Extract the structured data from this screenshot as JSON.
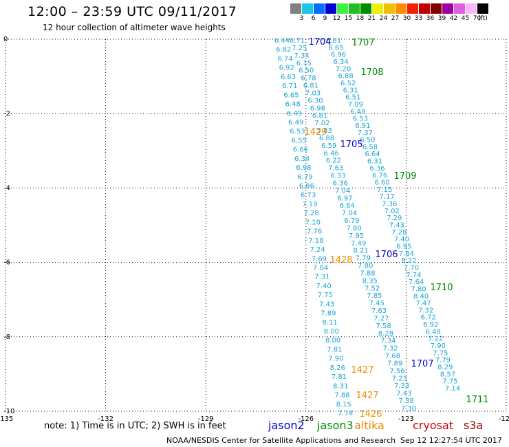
{
  "header": {
    "title": "12:00 – 23:59 UTC 09/11/2017",
    "subtitle": "12 hour collection of altimeter wave heights"
  },
  "scale": {
    "unit": "(ft)",
    "swatches": [
      {
        "label": "3",
        "color": "#808080"
      },
      {
        "label": "6",
        "color": "#19c8e6"
      },
      {
        "label": "9",
        "color": "#0070ff"
      },
      {
        "label": "12",
        "color": "#0000d2"
      },
      {
        "label": "15",
        "color": "#40f040"
      },
      {
        "label": "18",
        "color": "#20c020"
      },
      {
        "label": "21",
        "color": "#008c00"
      },
      {
        "label": "24",
        "color": "#f0f000"
      },
      {
        "label": "27",
        "color": "#f0c000"
      },
      {
        "label": "30",
        "color": "#ff8c00"
      },
      {
        "label": "33",
        "color": "#f02000"
      },
      {
        "label": "36",
        "color": "#c00000"
      },
      {
        "label": "39",
        "color": "#800000"
      },
      {
        "label": "42",
        "color": "#a000a0"
      },
      {
        "label": "45",
        "color": "#e060e0"
      },
      {
        "label": "70",
        "color": "#ffb4ff"
      },
      {
        "label": "",
        "color": "#000000"
      }
    ]
  },
  "axes": {
    "lon_labels": [
      "-135",
      "-132",
      "-129",
      "-126",
      "-123",
      "-120"
    ],
    "lon_values": [
      -135,
      -132,
      -129,
      -126,
      -123,
      -120
    ],
    "lat_labels": [
      "0",
      "-2",
      "-4",
      "-6",
      "-8",
      "-10"
    ],
    "lat_values": [
      0,
      -2,
      -4,
      -6,
      -8,
      -10
    ]
  },
  "colors": {
    "swh": "#19a5d7",
    "jason2": "#0000d2",
    "jason3": "#008c00",
    "altika": "#f08c00",
    "cryosat": "#d20000",
    "s3a": "#a00000",
    "grid": "#000000"
  },
  "tracks": [
    {
      "id": "A",
      "values": [
        "6.44",
        "6.82",
        "6.74",
        "6.92",
        "6.63",
        "6.71",
        "6.65",
        "6.48",
        "6.49",
        "6.49",
        "6.53",
        "6.55",
        "6.66",
        "6.34",
        "6.98",
        "6.79",
        "6.86",
        "6.73",
        "7.19",
        "7.28",
        "7.10",
        "7.76",
        "7.18",
        "7.24",
        "7.69",
        "7.04",
        "7.31",
        "7.40",
        "7.75",
        "7.43",
        "7.89",
        "8.11",
        "8.00",
        "8.00",
        "7.81",
        "7.90",
        "8.26",
        "7.81",
        "8.31",
        "7.88",
        "8.15",
        "7.74"
      ]
    },
    {
      "id": "B",
      "values": [
        "6.71",
        "7.25",
        "7.34",
        "6.15",
        "6.50",
        "6.78",
        "6.81",
        "7.03",
        "6.30",
        "6.98",
        "6.81",
        "7.02",
        "5.83",
        "6.88",
        "6.59",
        "6.46",
        "6.22",
        "7.63",
        "6.33",
        "6.36",
        "7.04",
        "6.97",
        "6.84",
        "7.04",
        "6.79",
        "7.80",
        "7.95",
        "7.49",
        "8.21",
        "7.79",
        "7.80",
        "7.88",
        "8.35",
        "7.52",
        "7.85",
        "7.45",
        "7.63",
        "7.27",
        "7.58",
        "8.28",
        "7.34",
        "7.32",
        "7.68",
        "7.89",
        "7.56",
        "7.23",
        "7.33",
        "7.43",
        "7.38",
        "7.30"
      ]
    },
    {
      "id": "C",
      "values": [
        "6.81",
        "6.65",
        "6.96",
        "6.34",
        "7.20",
        "6.88",
        "6.52",
        "6.31",
        "6.51",
        "7.09",
        "6.48",
        "6.53",
        "6.91",
        "7.37",
        "6.50",
        "6.58",
        "6.64",
        "6.31",
        "6.36",
        "6.76",
        "6.60",
        "7.15",
        "7.17",
        "7.36",
        "7.02",
        "7.29",
        "7.43",
        "7.28",
        "7.40",
        "6.95",
        "7.84",
        "8.22",
        "7.70",
        "7.74",
        "7.64",
        "7.80",
        "8.40",
        "7.47",
        "7.32",
        "6.72",
        "6.92",
        "6.48",
        "7.22",
        "7.90",
        "7.75",
        "7.79",
        "8.29",
        "8.57",
        "7.75",
        "7.14"
      ]
    }
  ],
  "pass_labels": [
    {
      "text": "1704",
      "sat": "jason2"
    },
    {
      "text": "1707",
      "sat": "jason3"
    },
    {
      "text": "1708",
      "sat": "jason3"
    },
    {
      "text": "1429",
      "sat": "altika"
    },
    {
      "text": "1705",
      "sat": "jason2"
    },
    {
      "text": "1709",
      "sat": "jason3"
    },
    {
      "text": "1428",
      "sat": "altika"
    },
    {
      "text": "1706",
      "sat": "jason2"
    },
    {
      "text": "1710",
      "sat": "jason3"
    },
    {
      "text": "1707",
      "sat": "jason2"
    },
    {
      "text": "1427",
      "sat": "altika"
    },
    {
      "text": "1427",
      "sat": "altika"
    },
    {
      "text": "1711",
      "sat": "jason3"
    },
    {
      "text": "1426",
      "sat": "altika"
    }
  ],
  "footer": {
    "note": "note:  1) Time is in UTC;  2) SWH is in feet",
    "legend": [
      {
        "name": "jason2",
        "sat": "jason2"
      },
      {
        "name": "jason3",
        "sat": "jason3"
      },
      {
        "name": "altika",
        "sat": "altika"
      },
      {
        "name": "cryosat",
        "sat": "cryosat"
      },
      {
        "name": "s3a",
        "sat": "s3a"
      }
    ],
    "credit": "NOAA/NESDIS Center for Satellite Applications and Research",
    "timestamp": "Sep 12 12:27:54 UTC 2017"
  }
}
